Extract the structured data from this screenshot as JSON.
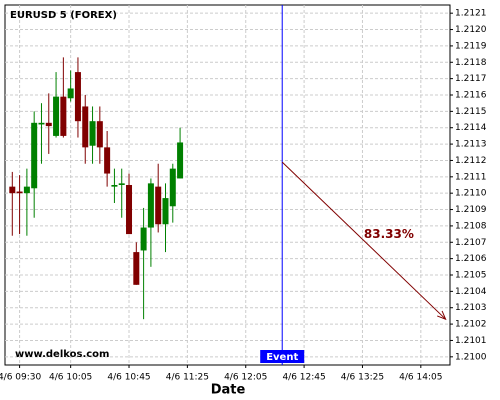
{
  "chart_data": {
    "type": "candlestick",
    "title": "EURUSD 5 (FOREX)",
    "x_label": "Date",
    "watermark": "www.delkos.com",
    "x": [
      565,
      570,
      575,
      580,
      585,
      590,
      595,
      600,
      605,
      610,
      615,
      620,
      625,
      630,
      635,
      640,
      645,
      650,
      655,
      660,
      665,
      670,
      675,
      680
    ],
    "open": [
      1.21104,
      1.21101,
      1.211,
      1.21103,
      1.21142,
      1.21143,
      1.21135,
      1.21159,
      1.21158,
      1.21174,
      1.21153,
      1.21129,
      1.21144,
      1.21128,
      1.21104,
      1.21105,
      1.21105,
      1.21064,
      1.21065,
      1.21079,
      1.21104,
      1.21081,
      1.21092,
      1.21109
    ],
    "high": [
      1.21113,
      1.21111,
      1.21115,
      1.2115,
      1.21155,
      1.21161,
      1.21174,
      1.21183,
      1.21175,
      1.21183,
      1.2116,
      1.21153,
      1.21153,
      1.21138,
      1.21115,
      1.21115,
      1.21112,
      1.2107,
      1.21091,
      1.21109,
      1.21118,
      1.21106,
      1.21118,
      1.2114
    ],
    "low": [
      1.21074,
      1.21075,
      1.21074,
      1.21085,
      1.21118,
      1.21124,
      1.21134,
      1.21134,
      1.21156,
      1.21134,
      1.21118,
      1.21118,
      1.21118,
      1.21104,
      1.21094,
      1.21085,
      1.21075,
      1.21044,
      1.21023,
      1.21055,
      1.21076,
      1.21064,
      1.21082,
      1.21109
    ],
    "close": [
      1.211,
      1.211,
      1.21104,
      1.21143,
      1.21143,
      1.21141,
      1.21159,
      1.21135,
      1.21164,
      1.21144,
      1.21128,
      1.21144,
      1.21128,
      1.21112,
      1.21105,
      1.21106,
      1.21075,
      1.21044,
      1.21079,
      1.21106,
      1.21081,
      1.21097,
      1.21115,
      1.21131
    ],
    "up_color": "#008000",
    "down_color": "#800000",
    "xlim": [
      560,
      865
    ],
    "xticks": [
      {
        "value": 570,
        "label": "4/6 09:30"
      },
      {
        "value": 605,
        "label": "4/6 10:05"
      },
      {
        "value": 645,
        "label": "4/6 10:45"
      },
      {
        "value": 685,
        "label": "4/6 11:25"
      },
      {
        "value": 725,
        "label": "4/6 12:05"
      },
      {
        "value": 765,
        "label": "4/6 12:45"
      },
      {
        "value": 805,
        "label": "4/6 13:25"
      },
      {
        "value": 845,
        "label": "4/6 14:05"
      }
    ],
    "ylim": [
      1.20995,
      1.21215
    ],
    "yticks": [
      {
        "value": 1.21,
        "label": "1.2100"
      },
      {
        "value": 1.2101,
        "label": "1.2101"
      },
      {
        "value": 1.2102,
        "label": "1.2102"
      },
      {
        "value": 1.2103,
        "label": "1.2103"
      },
      {
        "value": 1.2104,
        "label": "1.2104"
      },
      {
        "value": 1.2105,
        "label": "1.2105"
      },
      {
        "value": 1.2106,
        "label": "1.2106"
      },
      {
        "value": 1.2107,
        "label": "1.2107"
      },
      {
        "value": 1.2108,
        "label": "1.2108"
      },
      {
        "value": 1.2109,
        "label": "1.2109"
      },
      {
        "value": 1.211,
        "label": "1.2110"
      },
      {
        "value": 1.2111,
        "label": "1.2111"
      },
      {
        "value": 1.2112,
        "label": "1.2112"
      },
      {
        "value": 1.2113,
        "label": "1.2113"
      },
      {
        "value": 1.2114,
        "label": "1.2114"
      },
      {
        "value": 1.2115,
        "label": "1.2115"
      },
      {
        "value": 1.2116,
        "label": "1.2116"
      },
      {
        "value": 1.2117,
        "label": "1.2117"
      },
      {
        "value": 1.2118,
        "label": "1.2118"
      },
      {
        "value": 1.2119,
        "label": "1.2119"
      },
      {
        "value": 1.212,
        "label": "1.2120"
      },
      {
        "value": 1.2121,
        "label": "1.2121"
      }
    ],
    "grid": true,
    "event": {
      "label": "Event",
      "x": 750,
      "color": "#0000ff"
    },
    "projection": {
      "x": [
        750,
        862
      ],
      "y": [
        1.21119,
        1.21023
      ],
      "label": "83.33%",
      "color": "#800000"
    }
  }
}
